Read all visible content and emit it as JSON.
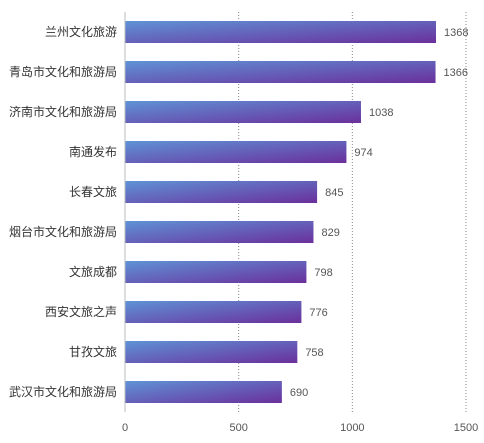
{
  "chart_data": {
    "type": "bar",
    "orientation": "horizontal",
    "categories": [
      "兰州文化旅游",
      "青岛市文化和旅游局",
      "济南市文化和旅游局",
      "南通发布",
      "长春文旅",
      "烟台市文化和旅游局",
      "文旅成都",
      "西安文旅之声",
      "甘孜文旅",
      "武汉市文化和旅游局"
    ],
    "values": [
      1368,
      1366,
      1038,
      974,
      845,
      829,
      798,
      776,
      758,
      690
    ],
    "xlim": [
      0,
      1500
    ],
    "xticks": [
      0,
      500,
      1000,
      1500
    ],
    "grid": "vertical dotted",
    "title": "",
    "xlabel": "",
    "ylabel": "",
    "colors": {
      "bar_start": "#5f93d6",
      "bar_end": "#6a2f9c",
      "grid": "#888888",
      "axis": "#bbbbbb"
    }
  }
}
